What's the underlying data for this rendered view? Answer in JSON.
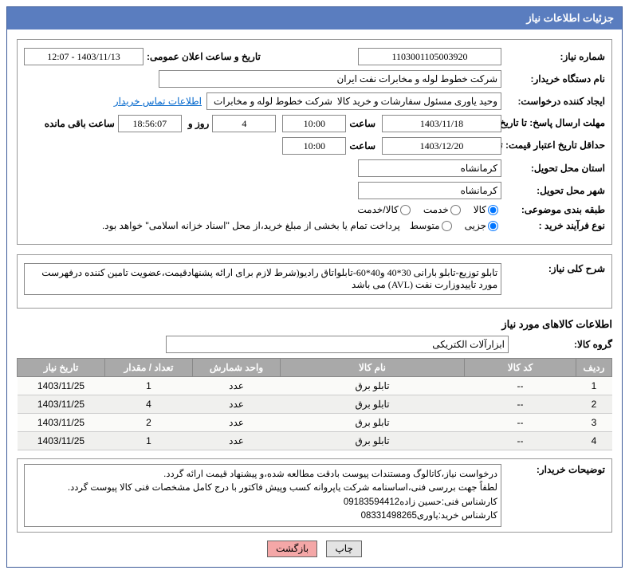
{
  "header": {
    "title": "جزئیات اطلاعات نیاز"
  },
  "need_number": {
    "label": "شماره نیاز:",
    "value": "1103001105003920"
  },
  "announce": {
    "label": "تاریخ و ساعت اعلان عمومی:",
    "value": "1403/11/13 - 12:07"
  },
  "buyer": {
    "label": "نام دستگاه خریدار:",
    "value": "شرکت خطوط لوله و مخابرات نفت ایران"
  },
  "requester": {
    "label": "ایجاد کننده درخواست:",
    "value": "وحید یاوری مسئول سفارشات و خرید کالا  شرکت خطوط لوله و مخابرات نفت ایرا",
    "contact_link": "اطلاعات تماس خریدار"
  },
  "deadline": {
    "label_to": "مهلت ارسال پاسخ: تا تاریخ:",
    "date": "1403/11/18",
    "time_label": "ساعت",
    "time": "10:00",
    "days": "4",
    "days_label_after": "روز و",
    "clock": "18:56:07",
    "remain_label": "ساعت باقی مانده"
  },
  "validity": {
    "label": "حداقل تاریخ اعتبار قیمت: تا تاریخ:",
    "date": "1403/12/20",
    "time_label": "ساعت",
    "time": "10:00"
  },
  "province": {
    "label": "استان محل تحویل:",
    "value": "کرمانشاه"
  },
  "city": {
    "label": "شهر محل تحویل:",
    "value": "کرمانشاه"
  },
  "category": {
    "label": "طبقه بندی موضوعی:",
    "opts": {
      "goods": "کالا",
      "service": "خدمت",
      "both": "کالا/خدمت"
    }
  },
  "process": {
    "label": "نوع فرآیند خرید :",
    "opts": {
      "small": "جزیی",
      "medium": "متوسط"
    },
    "note": "پرداخت تمام یا بخشی از مبلغ خرید،از محل \"اسناد خزانه اسلامی\" خواهد بود."
  },
  "summary": {
    "label": "شرح کلی نیاز:",
    "text": "تابلو توزیع-تابلو بارانی 30*40 و40*60-تابلواتاق رادیو(شرط لازم برای ارائه پشنهادقیمت،عضویت تامین کننده درفهرست مورد تاییدوزارت نفت (AVL) می باشد"
  },
  "goods_section_title": "اطلاعات کالاهای مورد نیاز",
  "goods_group": {
    "label": "گروه کالا:",
    "value": "ابزارآلات الکتریکی"
  },
  "table": {
    "cols": {
      "row": "ردیف",
      "code": "کد کالا",
      "name": "نام کالا",
      "unit": "واحد شمارش",
      "qty": "تعداد / مقدار",
      "date": "تاریخ نیاز"
    },
    "widths": {
      "row": "45px",
      "code": "140px",
      "name": "auto",
      "unit": "110px",
      "qty": "110px",
      "date": "110px"
    },
    "header_bg": "#a9a9a9",
    "rows": [
      {
        "idx": "1",
        "code": "--",
        "name": "تابلو برق",
        "unit": "عدد",
        "qty": "1",
        "date": "1403/11/25"
      },
      {
        "idx": "2",
        "code": "--",
        "name": "تابلو برق",
        "unit": "عدد",
        "qty": "4",
        "date": "1403/11/25"
      },
      {
        "idx": "3",
        "code": "--",
        "name": "تابلو برق",
        "unit": "عدد",
        "qty": "2",
        "date": "1403/11/25"
      },
      {
        "idx": "4",
        "code": "--",
        "name": "تابلو برق",
        "unit": "عدد",
        "qty": "1",
        "date": "1403/11/25"
      }
    ]
  },
  "buyer_notes": {
    "label": "توضیحات خریدار:",
    "text": "درخواست نیاز،کاتالوگ ومستندات پیوست بادقت مطالعه شده،و پیشنهاد قیمت ارائه گردد.\nلطفاً جهت بررسی فنی،اساسنامه شرکت یاپروانه کسب وپیش فاکتور با درج کامل مشخصات فنی کالا پیوست گردد.\nکارشناس فنی:حسین زاده09183594412\nکارشناس خرید:یاوری08331498265"
  },
  "buttons": {
    "print": "چاپ",
    "back": "بازگشت"
  }
}
